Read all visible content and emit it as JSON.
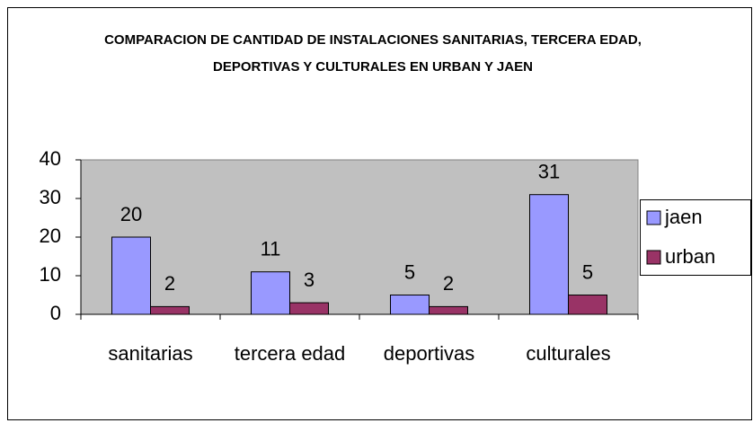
{
  "chart_data": {
    "type": "bar",
    "title": "COMPARACION DE CANTIDAD DE INSTALACIONES SANITARIAS, TERCERA EDAD, DEPORTIVAS Y CULTURALES EN URBAN Y JAEN",
    "categories": [
      "sanitarias",
      "tercera edad",
      "deportivas",
      "culturales"
    ],
    "series": [
      {
        "name": "jaen",
        "color": "#9999ff",
        "values": [
          20,
          11,
          5,
          31
        ]
      },
      {
        "name": "urban",
        "color": "#993366",
        "values": [
          2,
          3,
          2,
          5
        ]
      }
    ],
    "ylim": [
      0,
      40
    ],
    "yticks": [
      0,
      10,
      20,
      30,
      40
    ],
    "grid": false,
    "legend": "right",
    "plot_background": "#c0c0c0"
  }
}
